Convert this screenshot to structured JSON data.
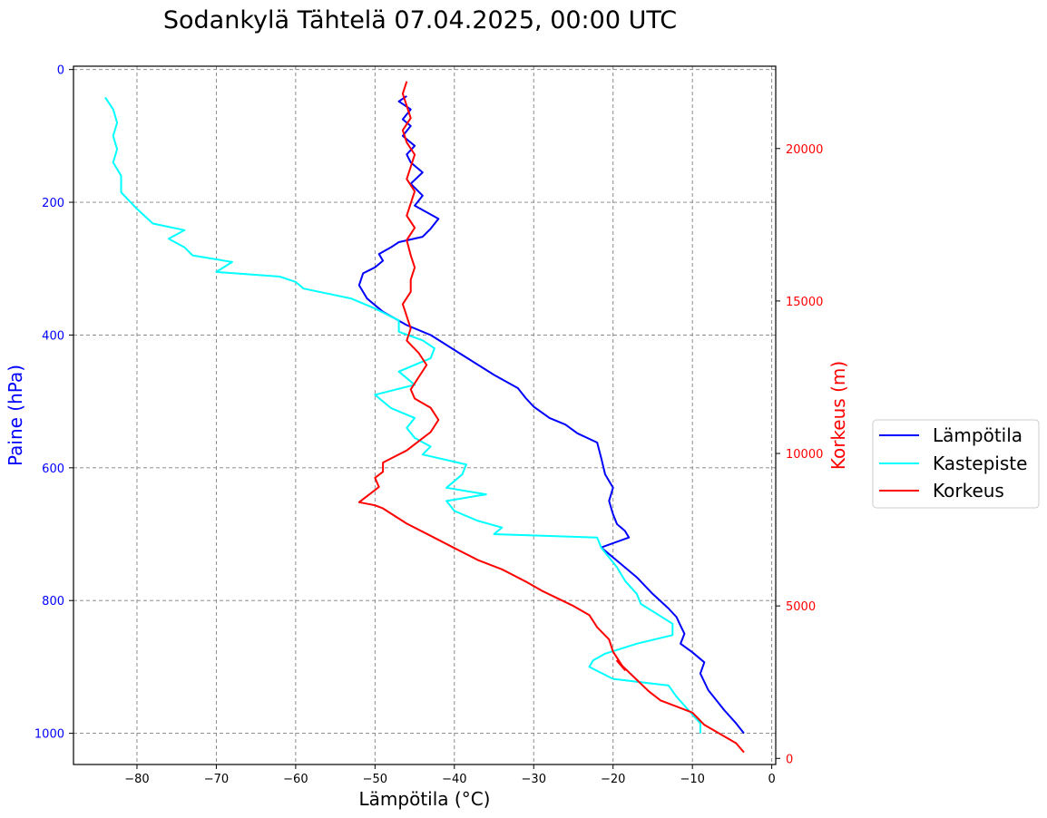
{
  "chart_data": {
    "type": "line",
    "title": "Sodankylä Tähtelä 07.04.2025, 00:00 UTC",
    "xlabel": "Lämpötila (°C)",
    "ylabel": "Paine (hPa)",
    "y2label": "Korkeus (m)",
    "xlim": [
      -88,
      0.5
    ],
    "ylim": [
      1047,
      -5
    ],
    "y2lim": [
      -200,
      22700
    ],
    "x_ticks": [
      -80,
      -70,
      -60,
      -50,
      -40,
      -30,
      -20,
      -10,
      0
    ],
    "y_ticks": [
      0,
      200,
      400,
      600,
      800,
      1000
    ],
    "y2_ticks": [
      0,
      5000,
      10000,
      15000,
      20000
    ],
    "grid": true,
    "legend_position": "right",
    "colors": {
      "temperature": "#0000ff",
      "dewpoint": "#00ffff",
      "height": "#ff0000",
      "axis_left": "#0000ff",
      "axis_right": "#ff0000"
    },
    "series": [
      {
        "name": "Lämpötila",
        "axis": "pressure",
        "points": [
          [
            -3.5,
            1000
          ],
          [
            -4.5,
            985
          ],
          [
            -6,
            965
          ],
          [
            -8,
            935
          ],
          [
            -9,
            910
          ],
          [
            -8.5,
            893
          ],
          [
            -10,
            878
          ],
          [
            -11.5,
            865
          ],
          [
            -11,
            850
          ],
          [
            -11.5,
            838
          ],
          [
            -12,
            825
          ],
          [
            -13,
            812
          ],
          [
            -15,
            790
          ],
          [
            -17,
            765
          ],
          [
            -19,
            745
          ],
          [
            -21.5,
            720
          ],
          [
            -18,
            705
          ],
          [
            -18.5,
            695
          ],
          [
            -19.5,
            685
          ],
          [
            -20,
            670
          ],
          [
            -20.5,
            650
          ],
          [
            -20,
            630
          ],
          [
            -21,
            610
          ],
          [
            -21.5,
            585
          ],
          [
            -22,
            562
          ],
          [
            -24.5,
            548
          ],
          [
            -26,
            535
          ],
          [
            -28,
            525
          ],
          [
            -30,
            508
          ],
          [
            -31,
            495
          ],
          [
            -32,
            480
          ],
          [
            -35,
            460
          ],
          [
            -37,
            445
          ],
          [
            -39,
            430
          ],
          [
            -41,
            415
          ],
          [
            -43,
            400
          ],
          [
            -46,
            385
          ],
          [
            -49,
            365
          ],
          [
            -51,
            345
          ],
          [
            -52,
            325
          ],
          [
            -51.5,
            307
          ],
          [
            -50,
            298
          ],
          [
            -49,
            288
          ],
          [
            -49.5,
            278
          ],
          [
            -48,
            268
          ],
          [
            -47,
            260
          ],
          [
            -44,
            252
          ],
          [
            -43,
            240
          ],
          [
            -42,
            225
          ],
          [
            -43.5,
            215
          ],
          [
            -45,
            205
          ],
          [
            -44,
            190
          ],
          [
            -45.5,
            172
          ],
          [
            -44,
            155
          ],
          [
            -45.5,
            140
          ],
          [
            -46,
            128
          ],
          [
            -45,
            115
          ],
          [
            -46.5,
            100
          ],
          [
            -45.5,
            85
          ],
          [
            -46.5,
            75
          ],
          [
            -45.5,
            60
          ],
          [
            -47,
            48
          ],
          [
            -46,
            40
          ]
        ]
      },
      {
        "name": "Kastepiste",
        "axis": "pressure",
        "points": [
          [
            -9,
            1000
          ],
          [
            -9,
            985
          ],
          [
            -10.5,
            965
          ],
          [
            -12,
            945
          ],
          [
            -13,
            928
          ],
          [
            -20,
            918
          ],
          [
            -23,
            900
          ],
          [
            -22.5,
            890
          ],
          [
            -21,
            880
          ],
          [
            -17,
            865
          ],
          [
            -12.5,
            852
          ],
          [
            -12.5,
            835
          ],
          [
            -14.5,
            820
          ],
          [
            -16.5,
            805
          ],
          [
            -17,
            790
          ],
          [
            -18.5,
            770
          ],
          [
            -19.5,
            750
          ],
          [
            -21.5,
            720
          ],
          [
            -22,
            705
          ],
          [
            -35,
            700
          ],
          [
            -34,
            690
          ],
          [
            -37,
            680
          ],
          [
            -40,
            665
          ],
          [
            -41,
            650
          ],
          [
            -36,
            640
          ],
          [
            -41,
            630
          ],
          [
            -39,
            610
          ],
          [
            -38.5,
            595
          ],
          [
            -44,
            580
          ],
          [
            -43,
            568
          ],
          [
            -45,
            555
          ],
          [
            -46,
            540
          ],
          [
            -45,
            525
          ],
          [
            -48,
            510
          ],
          [
            -50,
            490
          ],
          [
            -45,
            475
          ],
          [
            -47,
            455
          ],
          [
            -43,
            435
          ],
          [
            -42.5,
            420
          ],
          [
            -44,
            408
          ],
          [
            -47,
            395
          ],
          [
            -47,
            378
          ],
          [
            -50,
            360
          ],
          [
            -53,
            345
          ],
          [
            -59,
            330
          ],
          [
            -60,
            320
          ],
          [
            -62,
            312
          ],
          [
            -70,
            305
          ],
          [
            -68,
            290
          ],
          [
            -73,
            280
          ],
          [
            -74,
            268
          ],
          [
            -76,
            255
          ],
          [
            -74,
            242
          ],
          [
            -78,
            232
          ],
          [
            -80,
            210
          ],
          [
            -82,
            185
          ],
          [
            -82,
            160
          ],
          [
            -83,
            140
          ],
          [
            -82.5,
            120
          ],
          [
            -83,
            100
          ],
          [
            -82.5,
            80
          ],
          [
            -83,
            60
          ],
          [
            -84,
            42
          ]
        ]
      },
      {
        "name": "Korkeus",
        "axis": "height",
        "points": [
          [
            -3.5,
            200
          ],
          [
            -4.5,
            500
          ],
          [
            -6.5,
            800
          ],
          [
            -8.5,
            1100
          ],
          [
            -10,
            1500
          ],
          [
            -12,
            1700
          ],
          [
            -14,
            1900
          ],
          [
            -15.5,
            2200
          ],
          [
            -17.5,
            2700
          ],
          [
            -19.5,
            3200
          ],
          [
            -18.5,
            2900
          ],
          [
            -20,
            3500
          ],
          [
            -20.5,
            3900
          ],
          [
            -22,
            4300
          ],
          [
            -23,
            4700
          ],
          [
            -25,
            5000
          ],
          [
            -29,
            5500
          ],
          [
            -31,
            5800
          ],
          [
            -34,
            6200
          ],
          [
            -37,
            6500
          ],
          [
            -40,
            6900
          ],
          [
            -43,
            7300
          ],
          [
            -46,
            7700
          ],
          [
            -49,
            8200
          ],
          [
            -50,
            8300
          ],
          [
            -52,
            8400
          ],
          [
            -51,
            8600
          ],
          [
            -49.5,
            8900
          ],
          [
            -50,
            9200
          ],
          [
            -49,
            9400
          ],
          [
            -49,
            9700
          ],
          [
            -47.5,
            9900
          ],
          [
            -46,
            10100
          ],
          [
            -44.5,
            10400
          ],
          [
            -43,
            10700
          ],
          [
            -42,
            11100
          ],
          [
            -43,
            11500
          ],
          [
            -45,
            11800
          ],
          [
            -45.5,
            12100
          ],
          [
            -44.5,
            12500
          ],
          [
            -43.5,
            12900
          ],
          [
            -44.5,
            13300
          ],
          [
            -46,
            13700
          ],
          [
            -45.5,
            14100
          ],
          [
            -46,
            14500
          ],
          [
            -46.5,
            14900
          ],
          [
            -45.5,
            15300
          ],
          [
            -45.5,
            15700
          ],
          [
            -45,
            16100
          ],
          [
            -45.5,
            16500
          ],
          [
            -46,
            17000
          ],
          [
            -45,
            17400
          ],
          [
            -46,
            17800
          ],
          [
            -45.5,
            18200
          ],
          [
            -45,
            18600
          ],
          [
            -46,
            19000
          ],
          [
            -45.5,
            19400
          ],
          [
            -45,
            19800
          ],
          [
            -46,
            20200
          ],
          [
            -46.5,
            20600
          ],
          [
            -45.5,
            21000
          ],
          [
            -46,
            21400
          ],
          [
            -46.5,
            21800
          ],
          [
            -46,
            22200
          ]
        ]
      }
    ]
  }
}
